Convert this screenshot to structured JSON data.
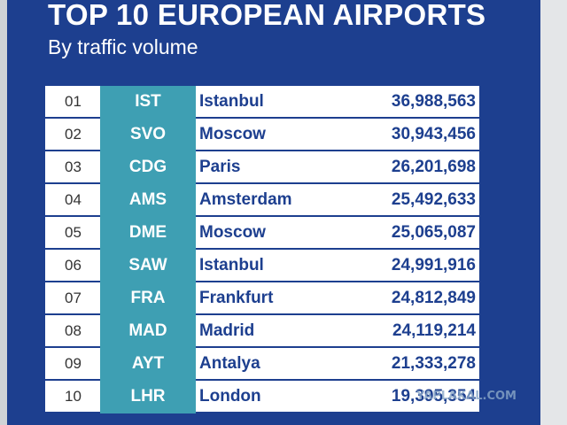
{
  "title": "TOP 10 EUROPEAN AIRPORTS",
  "subtitle": "By traffic volume",
  "watermark": "YAPLAKAL.COM",
  "colors": {
    "panel": "#1d3f8f",
    "code_column": "#3e9fb3",
    "text": "#1d3f8f"
  },
  "rows": [
    {
      "rank": "01",
      "code": "IST",
      "city": "Istanbul",
      "passengers": "36,988,563"
    },
    {
      "rank": "02",
      "code": "SVO",
      "city": "Moscow",
      "passengers": "30,943,456"
    },
    {
      "rank": "03",
      "code": "CDG",
      "city": "Paris",
      "passengers": "26,201,698"
    },
    {
      "rank": "04",
      "code": "AMS",
      "city": "Amsterdam",
      "passengers": "25,492,633"
    },
    {
      "rank": "05",
      "code": "DME",
      "city": "Moscow",
      "passengers": "25,065,087"
    },
    {
      "rank": "06",
      "code": "SAW",
      "city": "Istanbul",
      "passengers": "24,991,916"
    },
    {
      "rank": "07",
      "code": "FRA",
      "city": "Frankfurt",
      "passengers": "24,812,849"
    },
    {
      "rank": "08",
      "code": "MAD",
      "city": "Madrid",
      "passengers": "24,119,214"
    },
    {
      "rank": "09",
      "code": "AYT",
      "city": "Antalya",
      "passengers": "21,333,278"
    },
    {
      "rank": "10",
      "code": "LHR",
      "city": "London",
      "passengers": "19,395,354"
    }
  ]
}
